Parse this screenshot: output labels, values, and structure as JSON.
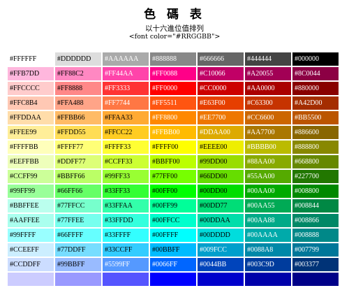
{
  "header": {
    "title": "色 碼 表",
    "subtitle": "以十六進位值排列",
    "code_hint": "<font color=\"#RRGGBB\">"
  },
  "rows": [
    [
      {
        "text": "#FFFFFF",
        "bg": "#FFFFFF",
        "fg": "#000000"
      },
      {
        "text": "#DDDDDD",
        "bg": "#DDDDDD",
        "fg": "#000000"
      },
      {
        "text": "#AAAAAA",
        "bg": "#AAAAAA",
        "fg": "#FFFFFF"
      },
      {
        "text": "#888888",
        "bg": "#888888",
        "fg": "#FFFFFF"
      },
      {
        "text": "#666666",
        "bg": "#666666",
        "fg": "#FFFFFF"
      },
      {
        "text": "#444444",
        "bg": "#444444",
        "fg": "#FFFFFF"
      },
      {
        "text": "#000000",
        "bg": "#000000",
        "fg": "#FFFFFF"
      }
    ],
    [
      {
        "text": "#FFB7DD",
        "bg": "#FFB7DD",
        "fg": "#000000"
      },
      {
        "text": "#FF88C2",
        "bg": "#FF88C2",
        "fg": "#000000"
      },
      {
        "text": "#FF44AA",
        "bg": "#FF44AA",
        "fg": "#FFFFFF"
      },
      {
        "text": "#FF0088",
        "bg": "#FF0088",
        "fg": "#FFFFFF"
      },
      {
        "text": "#C10066",
        "bg": "#C10066",
        "fg": "#FFFFFF"
      },
      {
        "text": "#A20055",
        "bg": "#A20055",
        "fg": "#FFFFFF"
      },
      {
        "text": "#8C0044",
        "bg": "#8C0044",
        "fg": "#FFFFFF"
      }
    ],
    [
      {
        "text": "#FFCCCC",
        "bg": "#FFCCCC",
        "fg": "#000000"
      },
      {
        "text": "#FF8888",
        "bg": "#FF8888",
        "fg": "#000000"
      },
      {
        "text": "#FF3333",
        "bg": "#FF3333",
        "fg": "#FFFFFF"
      },
      {
        "text": "#FF0000",
        "bg": "#FF0000",
        "fg": "#FFFFFF"
      },
      {
        "text": "#CC0000",
        "bg": "#CC0000",
        "fg": "#FFFFFF"
      },
      {
        "text": "#AA0000",
        "bg": "#AA0000",
        "fg": "#FFFFFF"
      },
      {
        "text": "#880000",
        "bg": "#880000",
        "fg": "#FFFFFF"
      }
    ],
    [
      {
        "text": "#FFC8B4",
        "bg": "#FFC8B4",
        "fg": "#000000"
      },
      {
        "text": "#FFA488",
        "bg": "#FFA488",
        "fg": "#000000"
      },
      {
        "text": "#FF7744",
        "bg": "#FF7744",
        "fg": "#FFFFFF"
      },
      {
        "text": "#FF5511",
        "bg": "#FF5511",
        "fg": "#FFFFFF"
      },
      {
        "text": "#E63F00",
        "bg": "#E63F00",
        "fg": "#FFFFFF"
      },
      {
        "text": "#C63300",
        "bg": "#C63300",
        "fg": "#FFFFFF"
      },
      {
        "text": "#A42D00",
        "bg": "#A42D00",
        "fg": "#FFFFFF"
      }
    ],
    [
      {
        "text": "#FFDDAA",
        "bg": "#FFDDAA",
        "fg": "#000000"
      },
      {
        "text": "#FFBB66",
        "bg": "#FFBB66",
        "fg": "#000000"
      },
      {
        "text": "#FFAA33",
        "bg": "#FFAA33",
        "fg": "#000000"
      },
      {
        "text": "#FF8800",
        "bg": "#FF8800",
        "fg": "#FFFFFF"
      },
      {
        "text": "#EE7700",
        "bg": "#EE7700",
        "fg": "#FFFFFF"
      },
      {
        "text": "#CC6600",
        "bg": "#CC6600",
        "fg": "#FFFFFF"
      },
      {
        "text": "#BB5500",
        "bg": "#BB5500",
        "fg": "#FFFFFF"
      }
    ],
    [
      {
        "text": "#FFEE99",
        "bg": "#FFEE99",
        "fg": "#000000"
      },
      {
        "text": "#FFDD55",
        "bg": "#FFDD55",
        "fg": "#000000"
      },
      {
        "text": "#FFCC22",
        "bg": "#FFCC22",
        "fg": "#000000"
      },
      {
        "text": "#FFBB00",
        "bg": "#FFBB00",
        "fg": "#FFFFFF"
      },
      {
        "text": "#DDAA00",
        "bg": "#DDAA00",
        "fg": "#FFFFFF"
      },
      {
        "text": "#AA7700",
        "bg": "#AA7700",
        "fg": "#FFFFFF"
      },
      {
        "text": "#886600",
        "bg": "#886600",
        "fg": "#FFFFFF"
      }
    ],
    [
      {
        "text": "#FFFFBB",
        "bg": "#FFFFBB",
        "fg": "#000000"
      },
      {
        "text": "#FFFF77",
        "bg": "#FFFF77",
        "fg": "#000000"
      },
      {
        "text": "#FFFF33",
        "bg": "#FFFF33",
        "fg": "#000000"
      },
      {
        "text": "#FFFF00",
        "bg": "#FFFF00",
        "fg": "#000000"
      },
      {
        "text": "#EEEE00",
        "bg": "#EEEE00",
        "fg": "#000000"
      },
      {
        "text": "#BBBB00",
        "bg": "#BBBB00",
        "fg": "#FFFFFF"
      },
      {
        "text": "#888800",
        "bg": "#888800",
        "fg": "#FFFFFF"
      }
    ],
    [
      {
        "text": "#EEFFBB",
        "bg": "#EEFFBB",
        "fg": "#000000"
      },
      {
        "text": "#DDFF77",
        "bg": "#DDFF77",
        "fg": "#000000"
      },
      {
        "text": "#CCFF33",
        "bg": "#CCFF33",
        "fg": "#000000"
      },
      {
        "text": "#BBFF00",
        "bg": "#BBFF00",
        "fg": "#000000"
      },
      {
        "text": "#99DD00",
        "bg": "#99DD00",
        "fg": "#000000"
      },
      {
        "text": "#88AA00",
        "bg": "#88AA00",
        "fg": "#FFFFFF"
      },
      {
        "text": "#668800",
        "bg": "#668800",
        "fg": "#FFFFFF"
      }
    ],
    [
      {
        "text": "#CCFF99",
        "bg": "#CCFF99",
        "fg": "#000000"
      },
      {
        "text": "#BBFF66",
        "bg": "#BBFF66",
        "fg": "#000000"
      },
      {
        "text": "#99FF33",
        "bg": "#99FF33",
        "fg": "#000000"
      },
      {
        "text": "#77FF00",
        "bg": "#77FF00",
        "fg": "#000000"
      },
      {
        "text": "#66DD00",
        "bg": "#66DD00",
        "fg": "#000000"
      },
      {
        "text": "#55AA00",
        "bg": "#55AA00",
        "fg": "#FFFFFF"
      },
      {
        "text": "#227700",
        "bg": "#227700",
        "fg": "#FFFFFF"
      }
    ],
    [
      {
        "text": "#99FF99",
        "bg": "#99FF99",
        "fg": "#000000"
      },
      {
        "text": "#66FF66",
        "bg": "#66FF66",
        "fg": "#000000"
      },
      {
        "text": "#33FF33",
        "bg": "#33FF33",
        "fg": "#000000"
      },
      {
        "text": "#00FF00",
        "bg": "#00FF00",
        "fg": "#000000"
      },
      {
        "text": "#00DD00",
        "bg": "#00DD00",
        "fg": "#000000"
      },
      {
        "text": "#00AA00",
        "bg": "#00AA00",
        "fg": "#FFFFFF"
      },
      {
        "text": "#008800",
        "bg": "#008800",
        "fg": "#FFFFFF"
      }
    ],
    [
      {
        "text": "#BBFFEE",
        "bg": "#BBFFEE",
        "fg": "#000000"
      },
      {
        "text": "#77FFCC",
        "bg": "#77FFCC",
        "fg": "#000000"
      },
      {
        "text": "#33FFAA",
        "bg": "#33FFAA",
        "fg": "#000000"
      },
      {
        "text": "#00FF99",
        "bg": "#00FF99",
        "fg": "#000000"
      },
      {
        "text": "#00DD77",
        "bg": "#00DD77",
        "fg": "#000000"
      },
      {
        "text": "#00AA55",
        "bg": "#00AA55",
        "fg": "#FFFFFF"
      },
      {
        "text": "#008844",
        "bg": "#008844",
        "fg": "#FFFFFF"
      }
    ],
    [
      {
        "text": "#AAFFEE",
        "bg": "#AAFFEE",
        "fg": "#000000"
      },
      {
        "text": "#77FFEE",
        "bg": "#77FFEE",
        "fg": "#000000"
      },
      {
        "text": "#33FFDD",
        "bg": "#33FFDD",
        "fg": "#000000"
      },
      {
        "text": "#00FFCC",
        "bg": "#00FFCC",
        "fg": "#000000"
      },
      {
        "text": "#00DDAA",
        "bg": "#00DDAA",
        "fg": "#000000"
      },
      {
        "text": "#00AA88",
        "bg": "#00AA88",
        "fg": "#FFFFFF"
      },
      {
        "text": "#008866",
        "bg": "#008866",
        "fg": "#FFFFFF"
      }
    ],
    [
      {
        "text": "#99FFFF",
        "bg": "#99FFFF",
        "fg": "#000000"
      },
      {
        "text": "#66FFFF",
        "bg": "#66FFFF",
        "fg": "#000000"
      },
      {
        "text": "#33FFFF",
        "bg": "#33FFFF",
        "fg": "#000000"
      },
      {
        "text": "#00FFFF",
        "bg": "#00FFFF",
        "fg": "#000000"
      },
      {
        "text": "#00DDDD",
        "bg": "#00DDDD",
        "fg": "#000000"
      },
      {
        "text": "#00AAAA",
        "bg": "#00AAAA",
        "fg": "#FFFFFF"
      },
      {
        "text": "#008888",
        "bg": "#008888",
        "fg": "#FFFFFF"
      }
    ],
    [
      {
        "text": "#CCEEFF",
        "bg": "#CCEEFF",
        "fg": "#000000"
      },
      {
        "text": "#77DDFF",
        "bg": "#77DDFF",
        "fg": "#000000"
      },
      {
        "text": "#33CCFF",
        "bg": "#33CCFF",
        "fg": "#000000"
      },
      {
        "text": "#00BBFF",
        "bg": "#00BBFF",
        "fg": "#000000"
      },
      {
        "text": "#009FCC",
        "bg": "#009FCC",
        "fg": "#FFFFFF"
      },
      {
        "text": "#0088A8",
        "bg": "#0088A8",
        "fg": "#FFFFFF"
      },
      {
        "text": "#007799",
        "bg": "#007799",
        "fg": "#FFFFFF"
      }
    ],
    [
      {
        "text": "#CCDDFF",
        "bg": "#CCDDFF",
        "fg": "#000000"
      },
      {
        "text": "#99BBFF",
        "bg": "#99BBFF",
        "fg": "#000000"
      },
      {
        "text": "#5599FF",
        "bg": "#5599FF",
        "fg": "#FFFFFF"
      },
      {
        "text": "#0066FF",
        "bg": "#0066FF",
        "fg": "#FFFFFF"
      },
      {
        "text": "#0044BB",
        "bg": "#0044BB",
        "fg": "#FFFFFF"
      },
      {
        "text": "#003C9D",
        "bg": "#003C9D",
        "fg": "#FFFFFF"
      },
      {
        "text": "#003377",
        "bg": "#003377",
        "fg": "#FFFFFF"
      }
    ],
    [
      {
        "text": "",
        "bg": "#CCCCFF",
        "fg": "#000000"
      },
      {
        "text": "",
        "bg": "#9999FF",
        "fg": "#000000"
      },
      {
        "text": "",
        "bg": "#5555FF",
        "fg": "#FFFFFF"
      },
      {
        "text": "",
        "bg": "#0000FF",
        "fg": "#FFFFFF"
      },
      {
        "text": "",
        "bg": "#0000CC",
        "fg": "#FFFFFF"
      },
      {
        "text": "",
        "bg": "#0000AA",
        "fg": "#FFFFFF"
      },
      {
        "text": "",
        "bg": "#000088",
        "fg": "#FFFFFF"
      }
    ]
  ]
}
